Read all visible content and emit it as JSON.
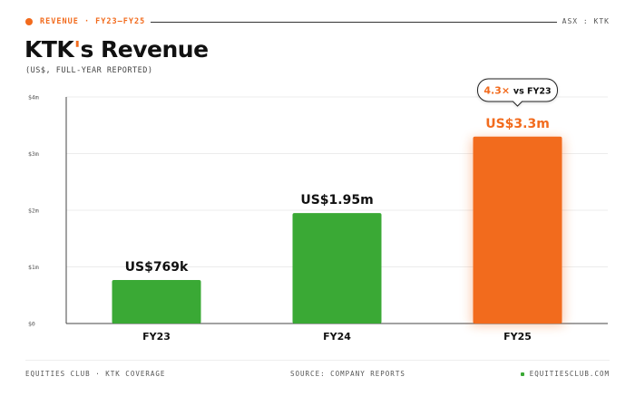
{
  "header": {
    "kicker": "REVENUE · FY23–FY25",
    "ticker": "ASX : KTK"
  },
  "title": {
    "prefix": "KTK",
    "apostrophe": "'",
    "suffix": "s Revenue"
  },
  "subtitle": "(US$, FULL-YEAR REPORTED)",
  "chart_data": {
    "type": "bar",
    "categories": [
      "FY23",
      "FY24",
      "FY25"
    ],
    "values": [
      0.769,
      1.95,
      3.3
    ],
    "value_labels": [
      "US$769k",
      "US$1.95m",
      "US$3.3m"
    ],
    "ylim": [
      0,
      4
    ],
    "yticks": [
      0,
      1,
      2,
      3,
      4
    ],
    "ytick_labels": [
      "$0",
      "$1m",
      "$2m",
      "$3m",
      "$4m"
    ],
    "grid": true,
    "colors": [
      "#3aa935",
      "#3aa935",
      "#f26b1d"
    ],
    "callout": {
      "multiple": "4.3×",
      "text": "vs FY23",
      "category": "FY25"
    }
  },
  "footer": {
    "left": "EQUITIES CLUB · KTK COVERAGE",
    "center": "SOURCE: COMPANY REPORTS",
    "right": "EQUITIESCLUB.COM"
  }
}
